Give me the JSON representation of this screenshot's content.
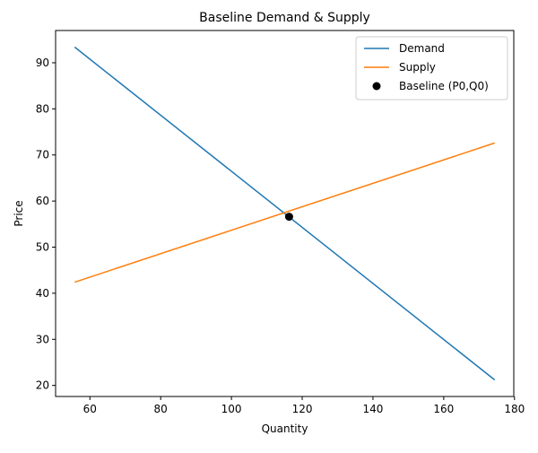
{
  "chart_data": {
    "type": "line",
    "title": "Baseline Demand & Supply",
    "xlabel": "Quantity",
    "ylabel": "Price",
    "xlim": [
      50.3,
      179.8
    ],
    "ylim": [
      17.6,
      97.0
    ],
    "xticks": [
      60,
      80,
      100,
      120,
      140,
      160,
      180
    ],
    "yticks": [
      20,
      30,
      40,
      50,
      60,
      70,
      80,
      90
    ],
    "grid": false,
    "legend_position": "top-right",
    "series": [
      {
        "name": "Demand",
        "kind": "line",
        "color": "#1f77b4",
        "x": [
          55.7,
          174.4
        ],
        "y": [
          93.4,
          21.2
        ]
      },
      {
        "name": "Supply",
        "kind": "line",
        "color": "#ff7f0e",
        "x": [
          55.7,
          174.4
        ],
        "y": [
          42.4,
          72.6
        ]
      },
      {
        "name": "Baseline (P0,Q0)",
        "kind": "scatter",
        "color": "#000000",
        "x": [
          116.3
        ],
        "y": [
          56.6
        ]
      }
    ]
  }
}
